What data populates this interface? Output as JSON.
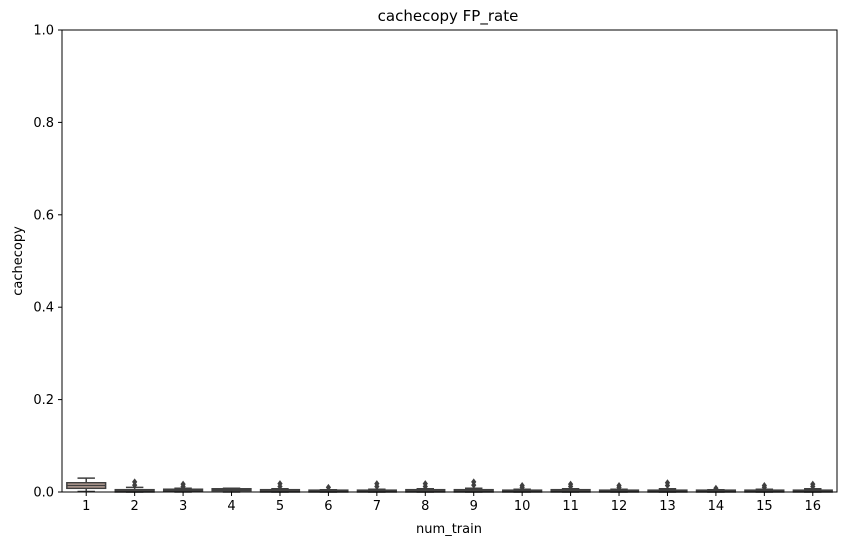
{
  "chart_data": {
    "type": "box",
    "title": "cachecopy FP_rate",
    "xlabel": "num_train",
    "ylabel": "cachecopy",
    "ylim": [
      0,
      1
    ],
    "yticks": [
      "0.0",
      "0.2",
      "0.4",
      "0.6",
      "0.8",
      "1.0"
    ],
    "grid": false,
    "box_color": "#c6aca0",
    "line_color": "#3f3f3f",
    "categories": [
      "1",
      "2",
      "3",
      "4",
      "5",
      "6",
      "7",
      "8",
      "9",
      "10",
      "11",
      "12",
      "13",
      "14",
      "15",
      "16"
    ],
    "boxes": [
      {
        "x": "1",
        "q1": 0.008,
        "median": 0.014,
        "q3": 0.02,
        "wlo": 0.001,
        "whi": 0.03,
        "outliers": []
      },
      {
        "x": "2",
        "q1": 0.0,
        "median": 0.002,
        "q3": 0.005,
        "wlo": 0.0,
        "whi": 0.01,
        "outliers": [
          0.015,
          0.022
        ]
      },
      {
        "x": "3",
        "q1": 0.002,
        "median": 0.004,
        "q3": 0.006,
        "wlo": 0.0,
        "whi": 0.008,
        "outliers": [
          0.012,
          0.017
        ]
      },
      {
        "x": "4",
        "q1": 0.003,
        "median": 0.005,
        "q3": 0.007,
        "wlo": 0.0,
        "whi": 0.008,
        "outliers": []
      },
      {
        "x": "5",
        "q1": 0.0,
        "median": 0.002,
        "q3": 0.005,
        "wlo": 0.0,
        "whi": 0.007,
        "outliers": [
          0.012,
          0.018
        ]
      },
      {
        "x": "6",
        "q1": 0.0,
        "median": 0.002,
        "q3": 0.004,
        "wlo": 0.0,
        "whi": 0.005,
        "outliers": [
          0.01
        ]
      },
      {
        "x": "7",
        "q1": 0.0,
        "median": 0.002,
        "q3": 0.004,
        "wlo": 0.0,
        "whi": 0.006,
        "outliers": [
          0.012,
          0.018
        ]
      },
      {
        "x": "8",
        "q1": 0.0,
        "median": 0.002,
        "q3": 0.005,
        "wlo": 0.0,
        "whi": 0.007,
        "outliers": [
          0.012,
          0.018
        ]
      },
      {
        "x": "9",
        "q1": 0.0,
        "median": 0.002,
        "q3": 0.005,
        "wlo": 0.0,
        "whi": 0.008,
        "outliers": [
          0.015,
          0.022
        ]
      },
      {
        "x": "10",
        "q1": 0.0,
        "median": 0.002,
        "q3": 0.004,
        "wlo": 0.0,
        "whi": 0.006,
        "outliers": [
          0.01,
          0.014
        ]
      },
      {
        "x": "11",
        "q1": 0.0,
        "median": 0.002,
        "q3": 0.005,
        "wlo": 0.0,
        "whi": 0.007,
        "outliers": [
          0.012,
          0.017
        ]
      },
      {
        "x": "12",
        "q1": 0.0,
        "median": 0.002,
        "q3": 0.004,
        "wlo": 0.0,
        "whi": 0.006,
        "outliers": [
          0.01,
          0.014
        ]
      },
      {
        "x": "13",
        "q1": 0.0,
        "median": 0.002,
        "q3": 0.004,
        "wlo": 0.0,
        "whi": 0.007,
        "outliers": [
          0.014,
          0.02
        ]
      },
      {
        "x": "14",
        "q1": 0.0,
        "median": 0.002,
        "q3": 0.004,
        "wlo": 0.0,
        "whi": 0.005,
        "outliers": [
          0.008
        ]
      },
      {
        "x": "15",
        "q1": 0.0,
        "median": 0.002,
        "q3": 0.004,
        "wlo": 0.0,
        "whi": 0.006,
        "outliers": [
          0.01,
          0.014
        ]
      },
      {
        "x": "16",
        "q1": 0.0,
        "median": 0.002,
        "q3": 0.004,
        "wlo": 0.0,
        "whi": 0.007,
        "outliers": [
          0.012,
          0.017
        ]
      }
    ]
  }
}
